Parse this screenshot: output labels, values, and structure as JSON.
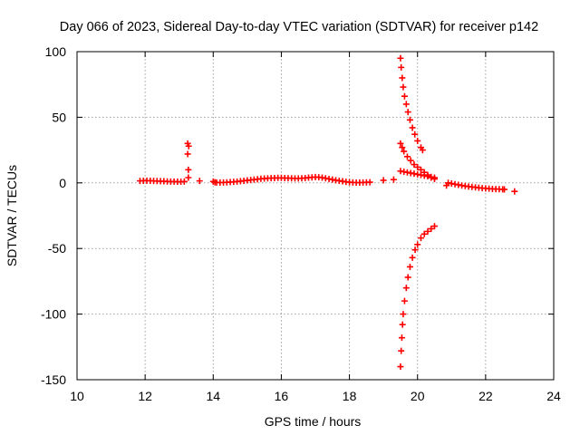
{
  "chart_data": {
    "type": "scatter",
    "title": "Day 066 of 2023, Sidereal Day-to-day VTEC variation (SDTVAR) for receiver p142",
    "xlabel": "GPS time / hours",
    "ylabel": "SDTVAR / TECUs",
    "xlim": [
      10,
      24
    ],
    "ylim": [
      -150,
      100
    ],
    "xticks": [
      10,
      12,
      14,
      16,
      18,
      20,
      22,
      24
    ],
    "yticks": [
      -150,
      -100,
      -50,
      0,
      50,
      100
    ],
    "grid": true,
    "marker": "+",
    "color": "#ff0000",
    "series": [
      {
        "name": "SDTVAR",
        "points": [
          [
            11.85,
            1.5
          ],
          [
            11.95,
            1.6
          ],
          [
            12.05,
            1.7
          ],
          [
            12.15,
            1.6
          ],
          [
            12.25,
            1.5
          ],
          [
            12.35,
            1.4
          ],
          [
            12.45,
            1.3
          ],
          [
            12.55,
            1.2
          ],
          [
            12.65,
            1.1
          ],
          [
            12.75,
            1.0
          ],
          [
            12.85,
            1.0
          ],
          [
            12.95,
            0.9
          ],
          [
            13.05,
            0.9
          ],
          [
            13.15,
            1.0
          ],
          [
            13.25,
            30
          ],
          [
            13.28,
            28
          ],
          [
            13.25,
            22
          ],
          [
            13.27,
            10
          ],
          [
            13.27,
            4
          ],
          [
            13.6,
            1.5
          ],
          [
            14.0,
            1.0
          ],
          [
            14.05,
            0.5
          ],
          [
            14.1,
            0.3
          ],
          [
            14.2,
            0.2
          ],
          [
            14.3,
            0.3
          ],
          [
            14.4,
            0.4
          ],
          [
            14.5,
            0.6
          ],
          [
            14.6,
            0.8
          ],
          [
            14.7,
            1.0
          ],
          [
            14.8,
            1.3
          ],
          [
            14.9,
            1.6
          ],
          [
            15.0,
            1.9
          ],
          [
            15.1,
            2.2
          ],
          [
            15.2,
            2.5
          ],
          [
            15.3,
            2.8
          ],
          [
            15.4,
            3.1
          ],
          [
            15.5,
            3.3
          ],
          [
            15.6,
            3.5
          ],
          [
            15.7,
            3.6
          ],
          [
            15.8,
            3.7
          ],
          [
            15.9,
            3.8
          ],
          [
            16.0,
            3.8
          ],
          [
            16.1,
            3.7
          ],
          [
            16.2,
            3.6
          ],
          [
            16.3,
            3.5
          ],
          [
            16.4,
            3.4
          ],
          [
            16.5,
            3.4
          ],
          [
            16.6,
            3.5
          ],
          [
            16.7,
            3.7
          ],
          [
            16.8,
            4.0
          ],
          [
            16.9,
            4.2
          ],
          [
            17.0,
            4.4
          ],
          [
            17.1,
            4.3
          ],
          [
            17.2,
            4.0
          ],
          [
            17.3,
            3.5
          ],
          [
            17.4,
            3.0
          ],
          [
            17.5,
            2.5
          ],
          [
            17.6,
            2.0
          ],
          [
            17.7,
            1.6
          ],
          [
            17.8,
            1.2
          ],
          [
            17.9,
            0.8
          ],
          [
            18.0,
            0.5
          ],
          [
            18.1,
            0.3
          ],
          [
            18.2,
            0.2
          ],
          [
            18.3,
            0.2
          ],
          [
            18.4,
            0.3
          ],
          [
            18.5,
            0.4
          ],
          [
            18.6,
            0.5
          ],
          [
            19.0,
            2.0
          ],
          [
            19.3,
            2.5
          ],
          [
            19.5,
            95
          ],
          [
            19.52,
            88
          ],
          [
            19.55,
            80
          ],
          [
            19.58,
            73
          ],
          [
            19.62,
            66
          ],
          [
            19.67,
            60
          ],
          [
            19.72,
            54
          ],
          [
            19.78,
            48
          ],
          [
            19.85,
            42
          ],
          [
            19.92,
            37
          ],
          [
            20.0,
            32
          ],
          [
            20.1,
            27
          ],
          [
            20.15,
            25
          ],
          [
            19.5,
            30
          ],
          [
            19.55,
            27
          ],
          [
            19.6,
            24
          ],
          [
            19.7,
            20
          ],
          [
            19.8,
            17
          ],
          [
            19.9,
            14
          ],
          [
            20.0,
            12
          ],
          [
            20.1,
            10
          ],
          [
            20.2,
            8
          ],
          [
            20.3,
            6
          ],
          [
            20.4,
            4
          ],
          [
            20.5,
            3
          ],
          [
            19.5,
            9
          ],
          [
            19.6,
            8.5
          ],
          [
            19.7,
            8
          ],
          [
            19.8,
            7.5
          ],
          [
            19.9,
            7
          ],
          [
            20.0,
            6.5
          ],
          [
            20.1,
            6
          ],
          [
            20.2,
            5.5
          ],
          [
            20.3,
            5
          ],
          [
            20.4,
            4.5
          ],
          [
            20.5,
            4
          ],
          [
            19.5,
            -140
          ],
          [
            19.52,
            -128
          ],
          [
            19.54,
            -118
          ],
          [
            19.56,
            -108
          ],
          [
            19.58,
            -100
          ],
          [
            19.62,
            -90
          ],
          [
            19.67,
            -80
          ],
          [
            19.72,
            -72
          ],
          [
            19.78,
            -64
          ],
          [
            19.85,
            -57
          ],
          [
            19.93,
            -51
          ],
          [
            20.0,
            -47
          ],
          [
            20.1,
            -42
          ],
          [
            20.2,
            -39
          ],
          [
            20.3,
            -37
          ],
          [
            20.4,
            -35
          ],
          [
            20.5,
            -33
          ],
          [
            20.85,
            -2
          ],
          [
            20.9,
            0
          ],
          [
            21.0,
            -0.5
          ],
          [
            21.1,
            -1
          ],
          [
            21.2,
            -1.5
          ],
          [
            21.3,
            -2
          ],
          [
            21.4,
            -2.4
          ],
          [
            21.5,
            -2.8
          ],
          [
            21.6,
            -3.1
          ],
          [
            21.7,
            -3.4
          ],
          [
            21.8,
            -3.7
          ],
          [
            21.9,
            -4.0
          ],
          [
            22.0,
            -4.2
          ],
          [
            22.1,
            -4.4
          ],
          [
            22.2,
            -4.6
          ],
          [
            22.3,
            -4.7
          ],
          [
            22.4,
            -4.8
          ],
          [
            22.5,
            -4.9
          ],
          [
            22.55,
            -5.0
          ],
          [
            22.85,
            -6.5
          ]
        ]
      }
    ]
  }
}
